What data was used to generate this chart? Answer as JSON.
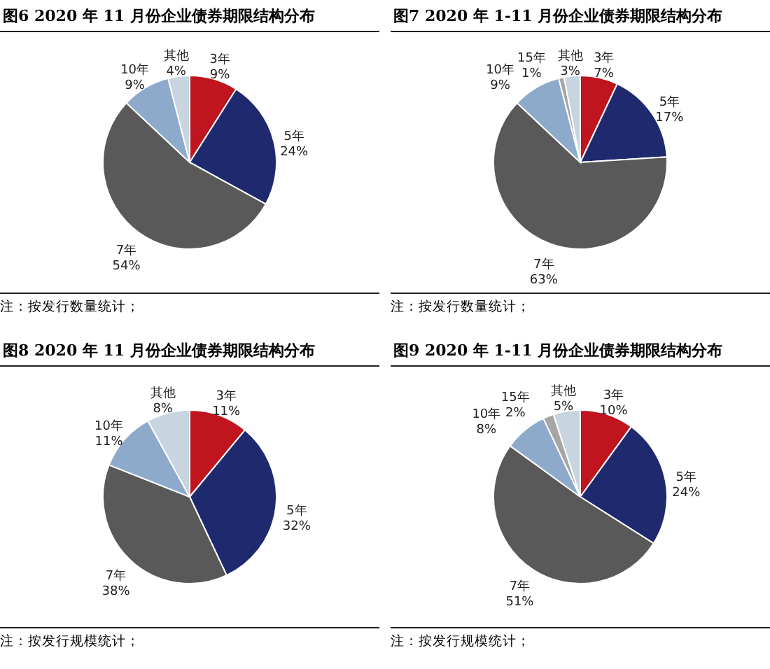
{
  "chart_data": [
    {
      "type": "pie",
      "title": "图6  2020 年 11 月份企业债券期限结构分布",
      "categories": [
        "3年",
        "5年",
        "7年",
        "10年",
        "其他"
      ],
      "values": [
        9,
        24,
        54,
        9,
        4
      ],
      "colors": [
        "#c0141e",
        "#1f2a6e",
        "#595959",
        "#8eaacb",
        "#c8d4e0"
      ],
      "value_labels": [
        "9%",
        "24%",
        "54%",
        "9%",
        "4%"
      ],
      "annotations": [
        "注：按发行数量统计；"
      ]
    },
    {
      "type": "pie",
      "title": "图7  2020 年 1-11 月份企业债券期限结构分布",
      "categories": [
        "3年",
        "5年",
        "7年",
        "10年",
        "15年",
        "其他"
      ],
      "values": [
        7,
        17,
        63,
        9,
        1,
        3
      ],
      "colors": [
        "#c0141e",
        "#1f2a6e",
        "#595959",
        "#8eaacb",
        "#a6a6a6",
        "#c8d4e0"
      ],
      "value_labels": [
        "7%",
        "17%",
        "63%",
        "9%",
        "1%",
        "3%"
      ],
      "annotations": [
        "注：按发行数量统计；"
      ]
    },
    {
      "type": "pie",
      "title": "图8  2020 年 11 月份企业债券期限结构分布",
      "categories": [
        "3年",
        "5年",
        "7年",
        "10年",
        "其他"
      ],
      "values": [
        11,
        32,
        38,
        11,
        8
      ],
      "colors": [
        "#c0141e",
        "#1f2a6e",
        "#595959",
        "#8eaacb",
        "#c8d4e0"
      ],
      "value_labels": [
        "11%",
        "32%",
        "38%",
        "11%",
        "8%"
      ],
      "annotations": [
        "注：按发行规模统计；"
      ]
    },
    {
      "type": "pie",
      "title": "图9  2020 年 1-11 月份企业债券期限结构分布",
      "categories": [
        "3年",
        "5年",
        "7年",
        "10年",
        "15年",
        "其他"
      ],
      "values": [
        10,
        24,
        51,
        8,
        2,
        5
      ],
      "colors": [
        "#c0141e",
        "#1f2a6e",
        "#595959",
        "#8eaacb",
        "#a6a6a6",
        "#c8d4e0"
      ],
      "value_labels": [
        "10%",
        "24%",
        "51%",
        "8%",
        "2%",
        "5%"
      ],
      "annotations": [
        "注：按发行规模统计；"
      ]
    }
  ]
}
